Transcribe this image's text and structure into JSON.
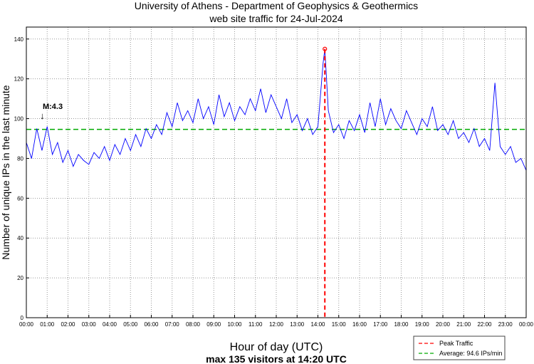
{
  "chart_data": {
    "type": "line",
    "title": "University of Athens - Department of Geophysics & Geothermics",
    "subtitle": "web site traffic for 24-Jul-2024",
    "xlabel": "Hour of day (UTC)",
    "ylabel": "Number of unique IPs in the last minute",
    "footer": "max 135 visitors at 14:20 UTC",
    "xlim": [
      0,
      24
    ],
    "ylim": [
      0,
      146
    ],
    "grid": true,
    "yticks": [
      0,
      20,
      40,
      60,
      80,
      100,
      120,
      140
    ],
    "xtick_labels": [
      "00:00",
      "01:00",
      "02:00",
      "03:00",
      "04:00",
      "05:00",
      "06:00",
      "07:00",
      "08:00",
      "09:00",
      "10:00",
      "11:00",
      "12:00",
      "13:00",
      "14:00",
      "15:00",
      "16:00",
      "17:00",
      "18:00",
      "19:00",
      "20:00",
      "21:00",
      "22:00",
      "23:00",
      "00:00"
    ],
    "sample_interval_hours": 0.25,
    "series": [
      {
        "name": "traffic",
        "color": "#0000ff",
        "values": [
          88,
          80,
          95,
          84,
          96,
          82,
          88,
          78,
          84,
          76,
          82,
          79,
          77,
          83,
          80,
          86,
          79,
          87,
          82,
          90,
          84,
          92,
          86,
          95,
          90,
          97,
          92,
          103,
          96,
          108,
          99,
          104,
          98,
          110,
          100,
          106,
          97,
          112,
          101,
          108,
          99,
          106,
          102,
          110,
          104,
          115,
          103,
          112,
          106,
          100,
          110,
          98,
          102,
          94,
          100,
          92,
          96,
          128,
          104,
          93,
          97,
          90,
          99,
          94,
          102,
          93,
          108,
          96,
          110,
          97,
          105,
          99,
          95,
          104,
          98,
          92,
          100,
          96,
          106,
          94,
          97,
          92,
          99,
          90,
          93,
          88,
          95,
          86,
          90,
          84,
          118,
          86,
          82,
          86,
          78,
          80,
          74
        ]
      }
    ],
    "peak": {
      "hour": 14.333,
      "value": 135,
      "color": "#ff0000"
    },
    "average": {
      "value": 94.6,
      "color": "#00aa00"
    },
    "annotation": {
      "text": "M:4.3",
      "hour": 0.75,
      "value": 106
    },
    "legend": {
      "position": "bottom-right",
      "entries": [
        {
          "label": "Peak Traffic",
          "color": "#ff0000"
        },
        {
          "label": "Average: 94.6 IPs/min",
          "color": "#00aa00"
        }
      ]
    }
  }
}
